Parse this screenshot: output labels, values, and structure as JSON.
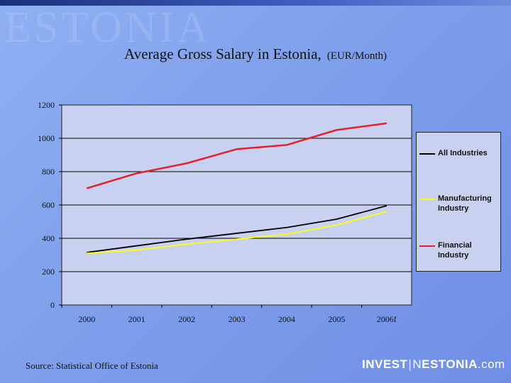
{
  "watermark": "ESTONIA",
  "title": {
    "main": "Average Gross Salary in Estonia,",
    "unit": "(EUR/Month)"
  },
  "source": "Source: Statistical Office of Estonia",
  "brand": {
    "part1": "INVEST",
    "separator": "|",
    "part2": "N",
    "part3": "ESTONIA",
    "part4": ".com"
  },
  "colors": {
    "background": "#7e9fea",
    "plot_area": "#c8d2f0"
  },
  "chart_data": {
    "type": "line",
    "title": "Average Gross Salary in Estonia, (EUR/Month)",
    "xlabel": "",
    "ylabel": "",
    "categories": [
      "2000",
      "2001",
      "2002",
      "2003",
      "2004",
      "2005",
      "2006f"
    ],
    "ylim": [
      0,
      1200
    ],
    "yticks": [
      0,
      200,
      400,
      600,
      800,
      1000,
      1200
    ],
    "grid": "horizontal",
    "legend_position": "right",
    "series": [
      {
        "name": "All Industries",
        "color": "#000000",
        "values": [
          315,
          355,
          395,
          430,
          465,
          515,
          595
        ]
      },
      {
        "name": "Manufacturing Industry",
        "color": "#ffff00",
        "values": [
          310,
          330,
          365,
          395,
          425,
          480,
          560
        ]
      },
      {
        "name": "Financial Industry",
        "color": "#e8202a",
        "values": [
          700,
          790,
          850,
          935,
          960,
          1050,
          1090
        ]
      }
    ]
  }
}
